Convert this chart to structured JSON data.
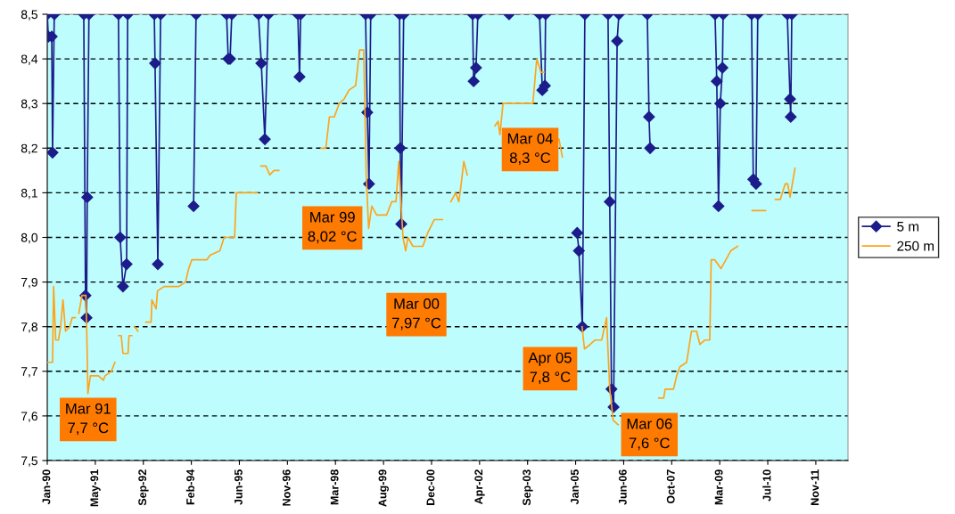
{
  "chart_data": {
    "type": "line",
    "xlim": [
      "1990-01-01",
      "2012-10-27"
    ],
    "xticks": [
      {
        "value": "1990-01-01",
        "label": "Jan-90"
      },
      {
        "value": "1991-05-16",
        "label": "May-91"
      },
      {
        "value": "1992-09-27",
        "label": "Sep-92"
      },
      {
        "value": "1994-02-09",
        "label": "Feb-94"
      },
      {
        "value": "1995-06-24",
        "label": "Jun-95"
      },
      {
        "value": "1996-11-05",
        "label": "Nov-96"
      },
      {
        "value": "1998-03-20",
        "label": "Mar-98"
      },
      {
        "value": "1999-08-02",
        "label": "Aug-99"
      },
      {
        "value": "2000-12-14",
        "label": "Dec-00"
      },
      {
        "value": "2002-04-28",
        "label": "Apr-02"
      },
      {
        "value": "2003-09-10",
        "label": "Sep-03"
      },
      {
        "value": "2005-01-22",
        "label": "Jan-05"
      },
      {
        "value": "2006-06-06",
        "label": "Jun-06"
      },
      {
        "value": "2007-10-19",
        "label": "Oct-07"
      },
      {
        "value": "2009-03-02",
        "label": "Mar-09"
      },
      {
        "value": "2010-07-15",
        "label": "Jul-10"
      },
      {
        "value": "2011-11-27",
        "label": "Nov-11"
      }
    ],
    "ylim": [
      7.5,
      8.5
    ],
    "yticks": [
      {
        "value": 7.5,
        "label": "7,5"
      },
      {
        "value": 7.6,
        "label": "7,6"
      },
      {
        "value": 7.7,
        "label": "7,7"
      },
      {
        "value": 7.8,
        "label": "7,8"
      },
      {
        "value": 7.9,
        "label": "7,9"
      },
      {
        "value": 8.0,
        "label": "8,0"
      },
      {
        "value": 8.1,
        "label": "8,1"
      },
      {
        "value": 8.2,
        "label": "8,2"
      },
      {
        "value": 8.3,
        "label": "8,3"
      },
      {
        "value": 8.4,
        "label": "8,4"
      },
      {
        "value": 8.5,
        "label": "8,5"
      }
    ],
    "grid": "y",
    "legend": "right",
    "series": [
      {
        "name": "5 m",
        "color": "#1c1c8a",
        "marker": "diamond",
        "x": [
          "1990-01-01",
          "1990-01-12",
          "1990-02-17",
          "1990-02-25",
          "1990-03-15",
          "1990-08-08",
          "1991-01-16",
          "1991-02-03",
          "1991-02-14",
          "1991-02-21",
          "1991-03-11",
          "1991-08-08",
          "1992-01-12",
          "1992-01-30",
          "1992-02-28",
          "1992-04-06",
          "1992-04-17",
          "1992-09-14",
          "1993-01-19",
          "1993-01-27",
          "1993-02-25",
          "1993-03-26",
          "1993-09-14",
          "1994-03-04",
          "1994-03-30",
          "1994-09-14",
          "1995-02-10",
          "1995-02-28",
          "1995-03-19",
          "1995-04-06",
          "1995-08-08",
          "1996-01-08",
          "1996-02-07",
          "1996-03-15",
          "1996-04-21",
          "1996-09-14",
          "1997-02-21",
          "1997-03-11",
          "1997-03-22",
          "1998-02-07",
          "1999-01-27",
          "1999-02-14",
          "1999-03-04",
          "1999-03-22",
          "1999-08-08",
          "2000-01-16",
          "2000-01-23",
          "2000-02-03",
          "2000-02-28",
          "2001-02-07",
          "2002-02-14",
          "2002-02-25",
          "2002-03-22",
          "2002-04-10",
          "2002-09-14",
          "2003-02-28",
          "2003-08-08",
          "2004-01-12",
          "2004-02-10",
          "2004-03-08",
          "2004-03-15",
          "2004-08-08",
          "2005-02-07",
          "2005-02-25",
          "2005-04-02",
          "2005-04-28",
          "2005-08-08",
          "2005-12-25",
          "2006-01-12",
          "2006-01-30",
          "2006-02-21",
          "2006-03-30",
          "2006-04-17",
          "2006-09-14",
          "2007-02-07",
          "2007-02-25",
          "2007-03-08",
          "2008-02-07",
          "2009-01-12",
          "2009-01-30",
          "2009-02-17",
          "2009-03-08",
          "2009-03-30",
          "2009-04-06",
          "2009-09-14",
          "2010-01-27",
          "2010-02-14",
          "2010-03-15",
          "2010-04-02",
          "2010-09-14",
          "2011-02-03",
          "2011-03-04",
          "2011-03-11",
          "2011-03-22"
        ],
        "values": [
          8.5,
          8.45,
          8.45,
          8.19,
          8.5,
          null,
          8.5,
          7.87,
          7.82,
          8.09,
          8.5,
          null,
          8.5,
          8.0,
          7.89,
          7.94,
          8.5,
          null,
          8.5,
          8.39,
          7.94,
          8.5,
          null,
          8.07,
          8.5,
          null,
          8.5,
          8.4,
          8.4,
          8.5,
          null,
          8.5,
          8.39,
          8.22,
          8.5,
          null,
          8.5,
          8.36,
          8.5,
          null,
          8.5,
          8.28,
          8.12,
          8.5,
          null,
          8.5,
          8.2,
          8.03,
          8.5,
          null,
          8.5,
          8.35,
          8.38,
          8.5,
          null,
          8.5,
          null,
          8.5,
          8.33,
          8.34,
          8.5,
          null,
          8.01,
          7.97,
          7.8,
          8.5,
          null,
          8.5,
          8.08,
          7.66,
          7.62,
          8.44,
          8.5,
          null,
          8.5,
          8.27,
          8.2,
          null,
          8.5,
          8.35,
          8.07,
          8.3,
          8.38,
          8.5,
          null,
          8.5,
          8.13,
          8.12,
          8.5,
          null,
          8.5,
          8.31,
          8.27,
          8.5
        ]
      },
      {
        "name": "250 m",
        "color": "#ffa31a",
        "x": [
          "1990-01-05",
          "1990-02-25",
          "1990-03-08",
          "1990-03-30",
          "1990-04-28",
          "1990-05-20",
          "1990-06-14",
          "1990-07-10",
          "1990-08-23",
          "1990-09-17",
          "1990-10-20",
          "1990-11-07",
          "1990-11-26",
          "1990-12-28",
          "1991-02-07",
          "1991-02-17",
          "1991-02-28",
          "1991-03-26",
          "1991-06-18",
          "1991-08-08",
          "1991-08-26",
          "1991-10-31",
          "1991-12-06",
          "1991-12-25",
          "1992-01-16",
          "1992-02-10",
          "1992-02-28",
          "1992-04-21",
          "1992-05-01",
          "1992-05-31",
          "1992-06-14",
          "1992-06-29",
          "1992-08-01",
          "1992-09-14",
          "1992-10-24",
          "1992-12-17",
          "1992-12-25",
          "1993-02-07",
          "1993-02-21",
          "1993-05-01",
          "1993-10-02",
          "1993-12-10",
          "1994-01-12",
          "1994-02-14",
          "1994-07-21",
          "1994-08-23",
          "1994-12-03",
          "1995-01-16",
          "1995-05-05",
          "1995-05-23",
          "1995-12-28",
          "1996-01-16",
          "1996-02-03",
          "1996-03-26",
          "1996-05-05",
          "1996-06-18",
          "1996-08-08",
          "1997-03-15",
          "1997-10-20",
          "1997-12-10",
          "1998-01-16",
          "1998-03-08",
          "1998-04-28",
          "1998-06-18",
          "1998-08-08",
          "1998-10-16",
          "1998-11-26",
          "1999-01-08",
          "1999-02-03",
          "1999-02-28",
          "1999-04-02",
          "1999-05-23",
          "1999-09-03",
          "1999-10-27",
          "1999-12-10",
          "2000-01-08",
          "2000-02-21",
          "2000-03-19",
          "2000-04-13",
          "2000-06-03",
          "2000-09-14",
          "2000-11-04",
          "2001-01-12",
          "2001-04-06",
          "2001-05-27",
          "2001-07-03",
          "2001-08-23",
          "2001-09-24",
          "2001-10-13",
          "2001-11-15",
          "2001-12-21",
          "2002-05-27",
          "2002-10-05",
          "2002-11-07",
          "2002-11-26",
          "2002-12-28",
          "2003-02-17",
          "2003-11-04",
          "2003-12-14",
          "2004-01-27",
          "2004-02-28",
          "2004-05-27",
          "2004-08-01",
          "2004-09-06",
          "2004-11-26",
          "2005-03-30",
          "2005-04-24",
          "2005-06-22",
          "2005-08-12",
          "2005-10-20",
          "2005-12-10",
          "2006-01-12",
          "2006-02-17",
          "2006-04-10",
          "2006-10-20",
          "2007-06-07",
          "2007-07-28",
          "2007-08-12",
          "2007-11-07",
          "2007-12-10",
          "2008-01-12",
          "2008-03-22",
          "2008-05-12",
          "2008-07-03",
          "2008-08-08",
          "2008-09-28",
          "2008-11-18",
          "2008-12-03",
          "2009-01-08",
          "2009-03-15",
          "2009-05-05",
          "2009-06-25",
          "2009-09-03",
          "2009-11-26",
          "2010-02-03",
          "2010-06-22",
          "2010-08-08",
          "2010-10-02",
          "2010-11-22",
          "2011-01-12",
          "2011-02-07",
          "2011-03-04",
          "2011-04-24"
        ],
        "values": [
          7.72,
          7.72,
          7.89,
          7.77,
          7.77,
          7.8,
          7.86,
          7.79,
          7.8,
          7.82,
          7.82,
          null,
          7.83,
          7.87,
          7.87,
          7.78,
          7.65,
          7.69,
          7.69,
          7.68,
          7.69,
          7.7,
          7.72,
          null,
          7.78,
          7.78,
          7.74,
          7.74,
          7.78,
          7.78,
          null,
          7.8,
          7.79,
          null,
          7.81,
          7.81,
          7.86,
          7.84,
          7.88,
          7.89,
          7.89,
          7.9,
          7.93,
          7.95,
          7.95,
          7.96,
          7.97,
          8.0,
          8.0,
          8.1,
          8.1,
          null,
          8.16,
          8.16,
          8.14,
          8.15,
          8.15,
          null,
          8.2,
          8.2,
          8.27,
          8.27,
          8.3,
          8.31,
          8.33,
          8.34,
          8.42,
          8.42,
          8.14,
          8.02,
          8.07,
          8.05,
          8.05,
          8.08,
          8.08,
          8.17,
          8.0,
          7.97,
          8.0,
          7.98,
          7.98,
          8.01,
          8.04,
          8.04,
          null,
          8.08,
          8.1,
          8.08,
          8.11,
          8.17,
          8.14,
          null,
          8.25,
          8.26,
          8.23,
          8.3,
          8.3,
          8.3,
          8.4,
          8.37,
          8.37,
          null,
          8.22,
          8.18,
          null,
          7.8,
          7.75,
          7.76,
          7.77,
          7.77,
          7.82,
          7.66,
          7.59,
          7.58,
          null,
          7.64,
          7.64,
          7.66,
          7.66,
          7.69,
          7.71,
          7.72,
          7.79,
          7.79,
          7.76,
          7.77,
          7.77,
          7.95,
          7.95,
          7.93,
          7.95,
          7.97,
          7.98,
          null,
          8.06,
          8.06,
          null,
          8.085,
          8.085,
          8.12,
          8.12,
          8.09,
          8.155
        ]
      }
    ],
    "annotations": [
      "Mar 91\n7,7 °C",
      "Mar 99\n8,02 °C",
      "Mar 00\n7,97 °C",
      "Mar 04\n8,3 °C",
      "Apr 05\n7,8 °C",
      "Mar 06\n7,6 °C"
    ]
  }
}
